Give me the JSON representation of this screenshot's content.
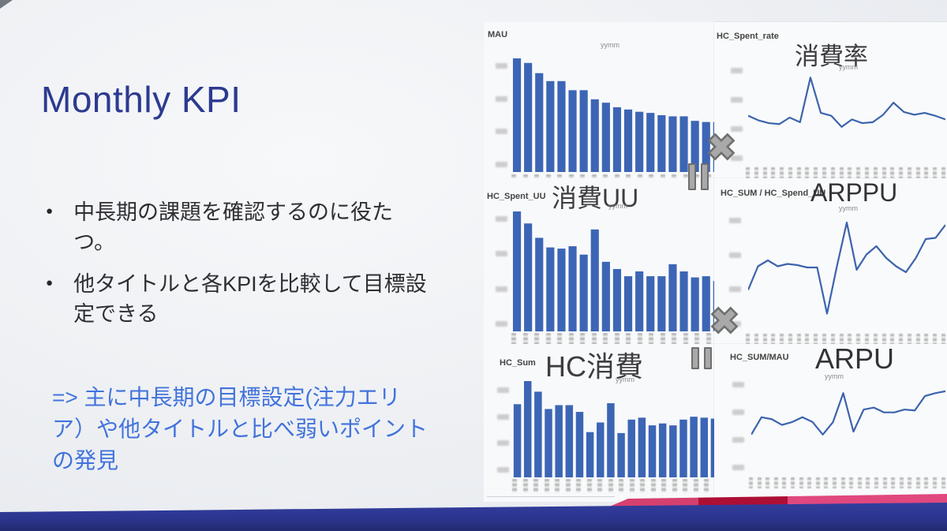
{
  "slide": {
    "title": "Monthly KPI",
    "bullets": [
      "中長期の課題を確認するのに役たつ。",
      "他タイトルと各KPIを比較して目標設定できる"
    ],
    "callout": "=> 主に中長期の目標設定(注力エリア）や他タイトルと比べ弱いポイントの発見"
  },
  "colors": {
    "title": "#2c3a90",
    "body_text": "#2f2f33",
    "callout": "#4273dc",
    "bar": "#3c65b5",
    "line": "#3c64ad",
    "footer_navy": "#2c3690",
    "footer_pink": "#d6406f",
    "footer_dark_red": "#ad0f35",
    "icon_gray": "#a9a9a9"
  },
  "chart_data": [
    {
      "type": "bar",
      "label": "MAU",
      "title": "",
      "subtitle": "yymm",
      "values": [
        100,
        96,
        87,
        80,
        80,
        72,
        72,
        64,
        61,
        57,
        55,
        53,
        52,
        50,
        49,
        49,
        45,
        44,
        44,
        42
      ],
      "x_axis": "yymm (tick labels pixelated/unreadable)",
      "y_axis": "tick labels pixelated/unreadable",
      "trend": "steady decline over ~20 months"
    },
    {
      "type": "line",
      "label": "HC_Spent_rate",
      "title": "消費率",
      "subtitle": "yymm",
      "values": [
        52,
        47,
        44,
        43,
        50,
        45,
        93,
        55,
        52,
        40,
        48,
        44,
        45,
        53,
        66,
        56,
        53,
        55,
        52,
        48
      ],
      "x_axis": "yymm (tick labels pixelated/unreadable)",
      "y_axis": "tick labels pixelated/unreadable",
      "trend": "mostly flat with one large spike early-middle and small late peak"
    },
    {
      "type": "bar",
      "label": "HC_Spent_UU",
      "title": "消費UU",
      "subtitle": "yymm",
      "values": [
        100,
        90,
        78,
        70,
        69,
        71,
        64,
        85,
        58,
        52,
        46,
        50,
        46,
        46,
        56,
        50,
        45,
        46,
        42,
        40
      ],
      "x_axis": "yymm (tick labels pixelated/unreadable)",
      "y_axis": "tick labels pixelated/unreadable",
      "trend": "decline with a rebound spike at month 8 and small bump at month 15"
    },
    {
      "type": "line",
      "label": "HC_SUM / HC_Spend_UU",
      "title": "ARPPU",
      "subtitle": "yymm",
      "values": [
        35,
        55,
        60,
        55,
        57,
        56,
        54,
        54,
        15,
        55,
        92,
        52,
        65,
        72,
        62,
        55,
        50,
        62,
        78,
        79,
        90
      ],
      "x_axis": "yymm (tick labels pixelated/unreadable)",
      "y_axis": "tick labels pixelated/unreadable",
      "trend": "volatile: deep dip mid-series, sharp spike after, rising toward end"
    },
    {
      "type": "bar",
      "label": "HC_Sum",
      "title": "HC消費",
      "subtitle": "yymm",
      "values": [
        76,
        100,
        89,
        71,
        75,
        75,
        68,
        47,
        57,
        77,
        46,
        60,
        62,
        54,
        56,
        54,
        60,
        63,
        62,
        61
      ],
      "x_axis": "yymm (tick labels pixelated/unreadable)",
      "y_axis": "tick labels pixelated/unreadable",
      "trend": "early peak then fluctuating mid-level values"
    },
    {
      "type": "line",
      "label": "HC_SUM/MAU",
      "title": "ARPU",
      "subtitle": "yymm",
      "values": [
        42,
        60,
        58,
        52,
        55,
        60,
        55,
        42,
        55,
        85,
        45,
        68,
        70,
        65,
        65,
        68,
        67,
        82,
        85,
        87
      ],
      "x_axis": "yymm (tick labels pixelated/unreadable)",
      "y_axis": "tick labels pixelated/unreadable",
      "trend": "wobbly with mid spike, rising toward end"
    }
  ],
  "overlay_icons": {
    "close_label": "close (mosaic overlay)",
    "pause_label": "pause (mosaic overlay)"
  }
}
